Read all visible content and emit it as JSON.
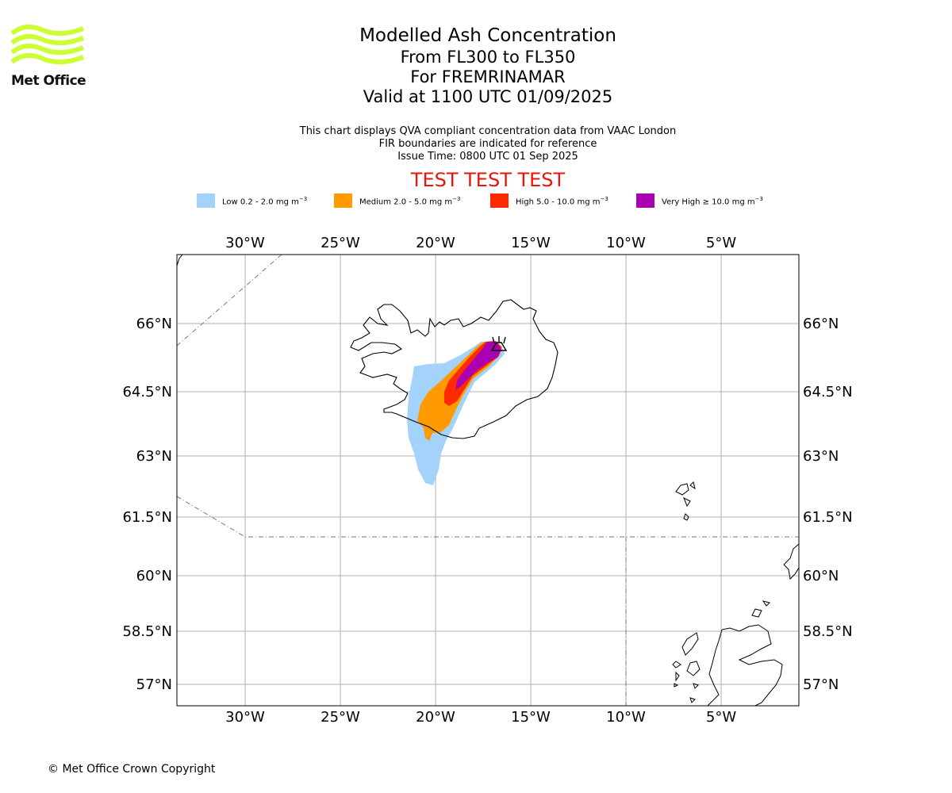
{
  "logo": {
    "text": "Met Office",
    "color": "#ccff33"
  },
  "title": {
    "main": "Modelled Ash Concentration",
    "levels": "From FL300 to FL350",
    "region": "For FREMRINAMAR",
    "valid": "Valid at 1100 UTC 01/09/2025"
  },
  "notes": {
    "line1": "This chart displays QVA compliant concentration data from VAAC London",
    "line2": "FIR boundaries are indicated for reference",
    "line3": "Issue Time: 0800 UTC 01 Sep 2025"
  },
  "banner": "TEST TEST TEST",
  "legend": [
    {
      "label": "Low 0.2 - 2.0 mg m",
      "unit_exp": "−3",
      "color": "#a3d3fb"
    },
    {
      "label": "Medium 2.0 - 5.0 mg m",
      "unit_exp": "−3",
      "color": "#ff9a00"
    },
    {
      "label": "High 5.0 - 10.0 mg m",
      "unit_exp": "−3",
      "color": "#ff2a00"
    },
    {
      "label": "Very High  ≥  10.0 mg m",
      "unit_exp": "−3",
      "color": "#ab00b1"
    }
  ],
  "map": {
    "lon_ticks": [
      "30°W",
      "25°W",
      "20°W",
      "15°W",
      "10°W",
      "5°W"
    ],
    "lat_ticks": [
      "66°N",
      "64.5°N",
      "63°N",
      "61.5°N",
      "60°N",
      "58.5°N",
      "57°N"
    ],
    "volcano_icon": "volcano-icon"
  },
  "copyright": "© Met Office Crown Copyright"
}
